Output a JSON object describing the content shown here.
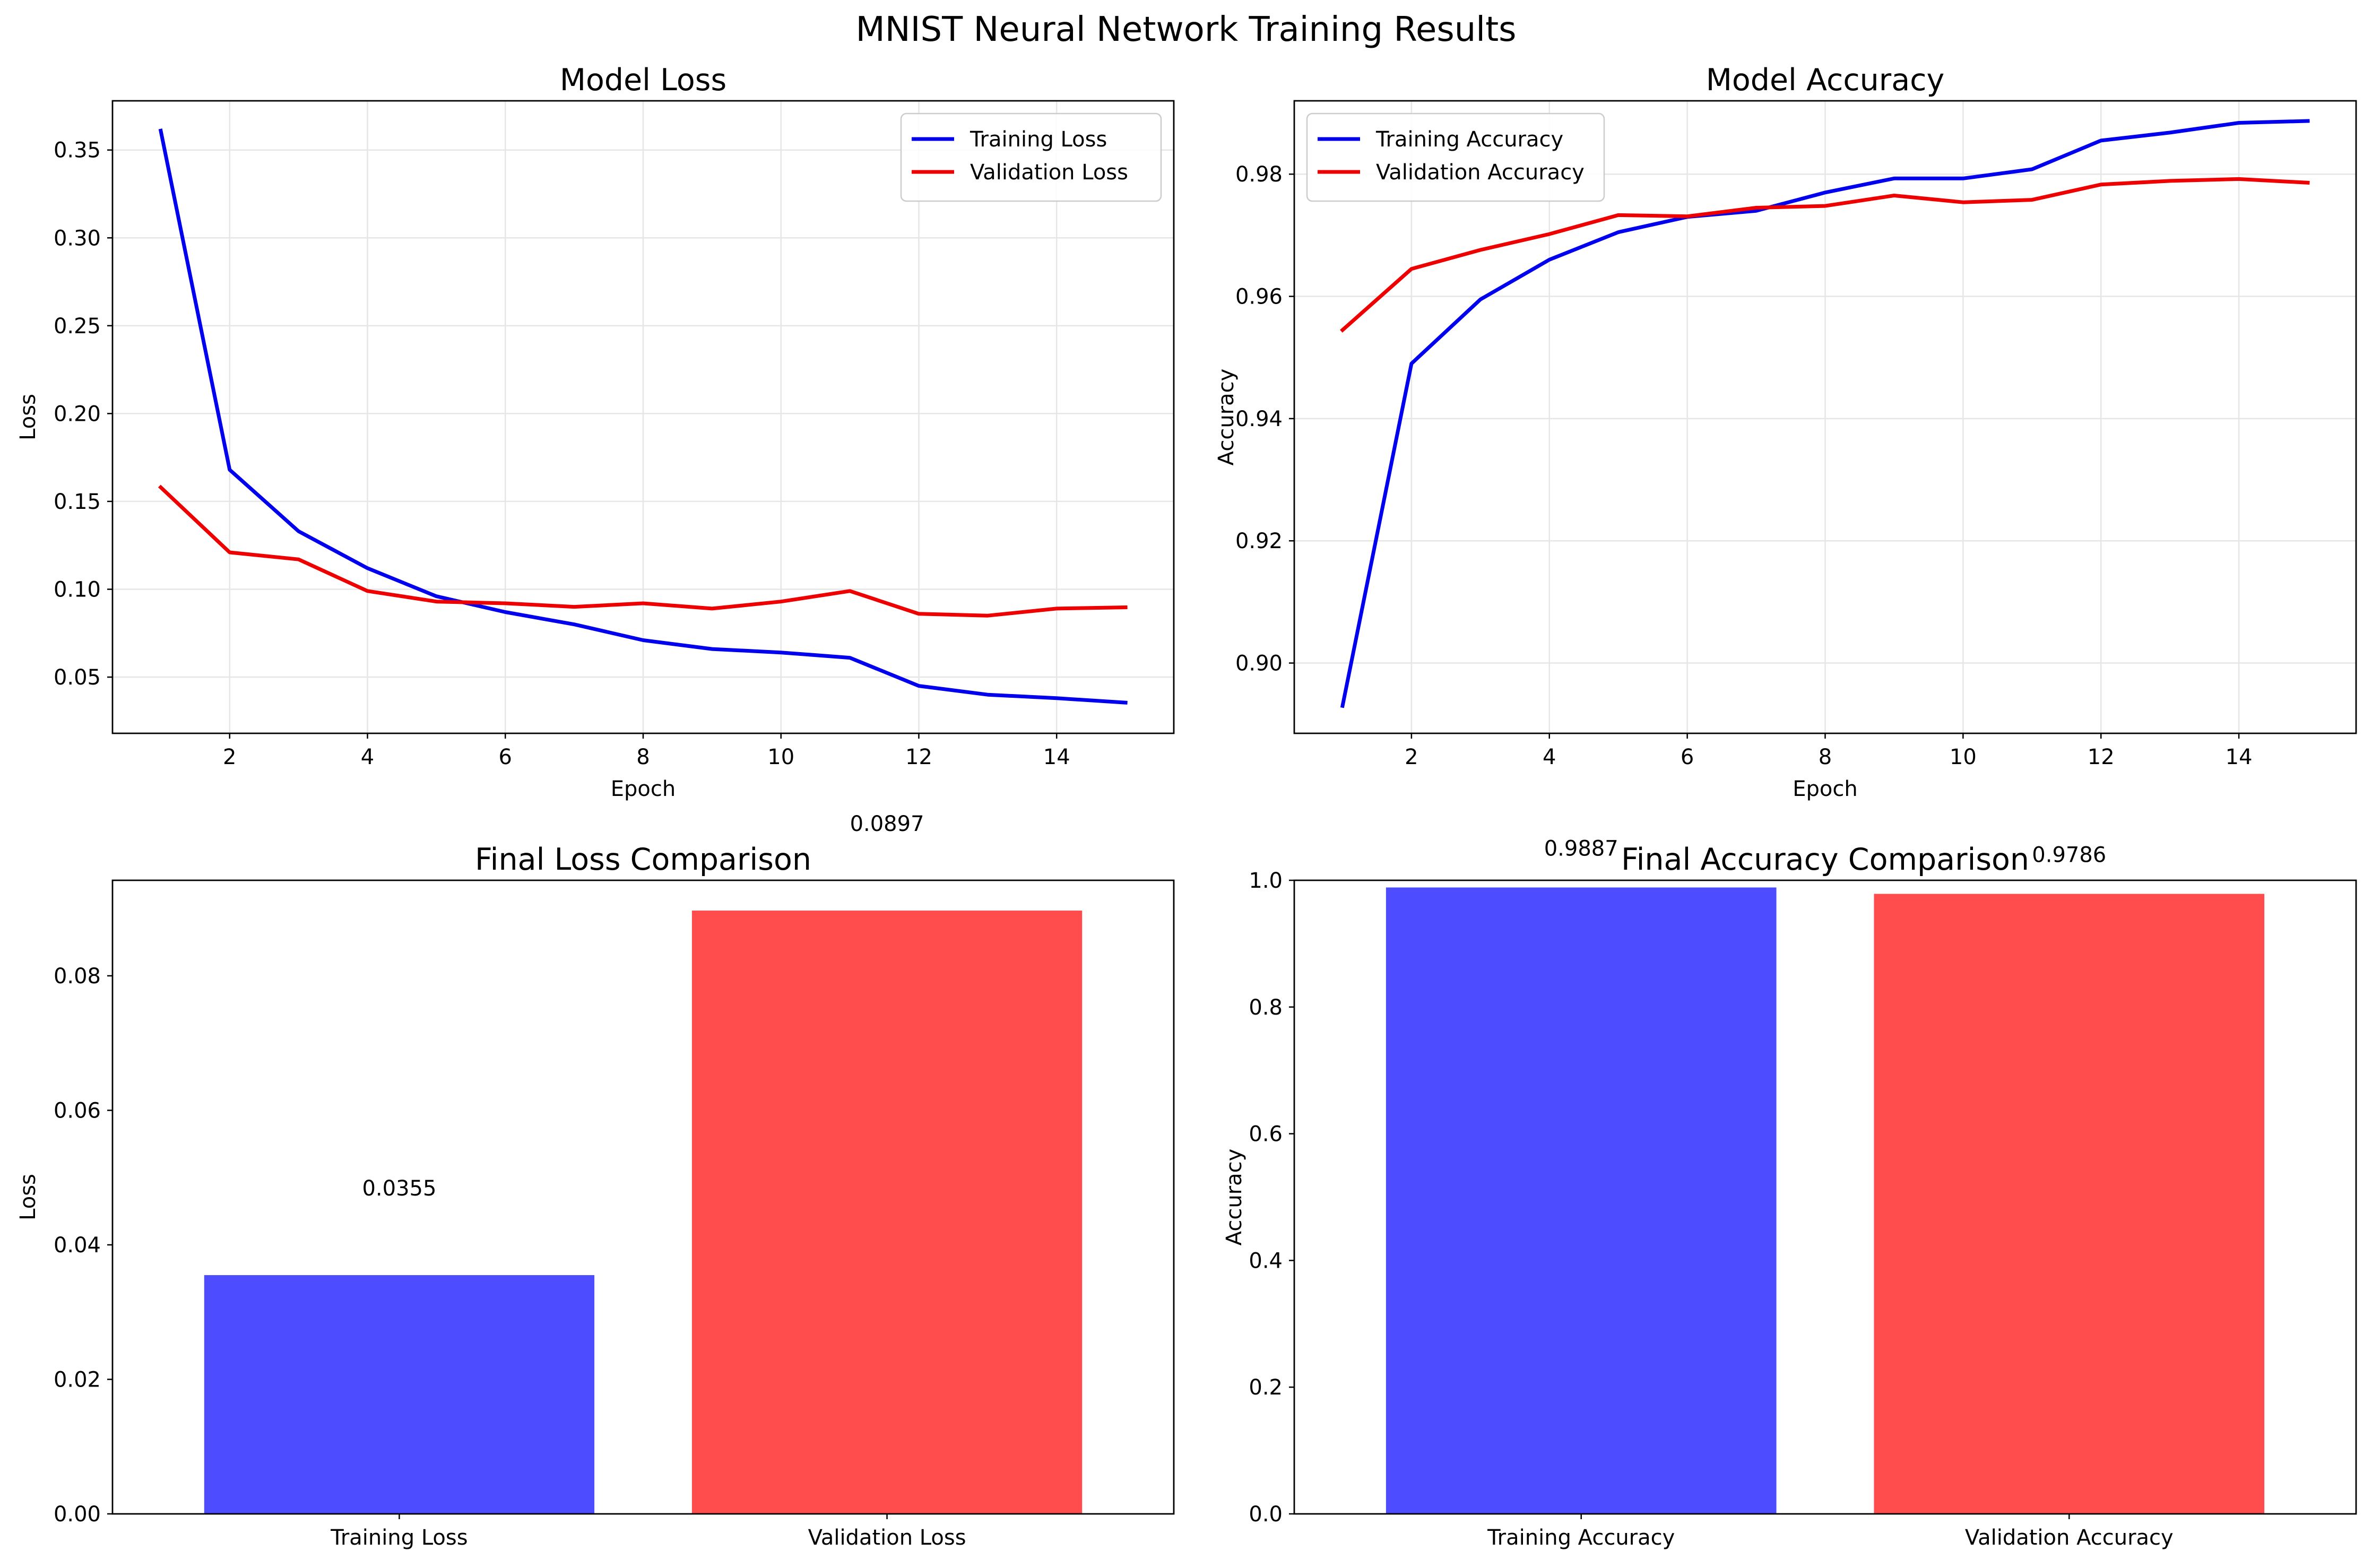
{
  "figure": {
    "title": "MNIST Neural Network Training Results"
  },
  "colors": {
    "training_line": "#0000ee",
    "validation_line": "#ee0000",
    "training_bar": "#4d4dff",
    "validation_bar": "#ff4d4d",
    "grid": "#e6e6e6"
  },
  "chart_data": [
    {
      "id": "loss",
      "type": "line",
      "title": "Model Loss",
      "xlabel": "Epoch",
      "ylabel": "Loss",
      "x": [
        1,
        2,
        3,
        4,
        5,
        6,
        7,
        8,
        9,
        10,
        11,
        12,
        13,
        14,
        15
      ],
      "xlim": [
        0.3,
        15.7
      ],
      "ylim": [
        0.018,
        0.378
      ],
      "xticks": [
        2,
        4,
        6,
        8,
        10,
        12,
        14
      ],
      "yticks": [
        0.05,
        0.1,
        0.15,
        0.2,
        0.25,
        0.3,
        0.35
      ],
      "ytick_labels": [
        "0.05",
        "0.10",
        "0.15",
        "0.20",
        "0.25",
        "0.30",
        "0.35"
      ],
      "grid": true,
      "legend_position": "top-right",
      "series": [
        {
          "name": "Training Loss",
          "color": "training_line",
          "values": [
            0.361,
            0.168,
            0.133,
            0.112,
            0.096,
            0.087,
            0.08,
            0.071,
            0.066,
            0.064,
            0.061,
            0.045,
            0.04,
            0.038,
            0.0355
          ]
        },
        {
          "name": "Validation Loss",
          "color": "validation_line",
          "values": [
            0.158,
            0.121,
            0.117,
            0.099,
            0.093,
            0.092,
            0.09,
            0.092,
            0.089,
            0.093,
            0.099,
            0.086,
            0.085,
            0.089,
            0.0897
          ]
        }
      ]
    },
    {
      "id": "accuracy",
      "type": "line",
      "title": "Model Accuracy",
      "xlabel": "Epoch",
      "ylabel": "Accuracy",
      "x": [
        1,
        2,
        3,
        4,
        5,
        6,
        7,
        8,
        9,
        10,
        11,
        12,
        13,
        14,
        15
      ],
      "xlim": [
        0.3,
        15.7
      ],
      "ylim": [
        0.8885,
        0.992
      ],
      "xticks": [
        2,
        4,
        6,
        8,
        10,
        12,
        14
      ],
      "yticks": [
        0.9,
        0.92,
        0.94,
        0.96,
        0.98
      ],
      "ytick_labels": [
        "0.90",
        "0.92",
        "0.94",
        "0.96",
        "0.98"
      ],
      "grid": true,
      "legend_position": "top-left",
      "series": [
        {
          "name": "Training Accuracy",
          "color": "training_line",
          "values": [
            0.893,
            0.949,
            0.9595,
            0.966,
            0.9705,
            0.973,
            0.974,
            0.977,
            0.9793,
            0.9793,
            0.9808,
            0.9855,
            0.9868,
            0.9884,
            0.9887
          ]
        },
        {
          "name": "Validation Accuracy",
          "color": "validation_line",
          "values": [
            0.9545,
            0.9645,
            0.9676,
            0.9702,
            0.9733,
            0.9731,
            0.9745,
            0.9748,
            0.9765,
            0.9754,
            0.9758,
            0.9783,
            0.9789,
            0.9792,
            0.9786
          ]
        }
      ]
    },
    {
      "id": "final_loss",
      "type": "bar",
      "title": "Final Loss Comparison",
      "xlabel": "",
      "ylabel": "Loss",
      "categories": [
        "Training Loss",
        "Validation Loss"
      ],
      "values": [
        0.0355,
        0.0897
      ],
      "value_labels": [
        "0.0355",
        "0.0897"
      ],
      "bar_colors": [
        "training_bar",
        "validation_bar"
      ],
      "ylim": [
        0,
        0.0942
      ],
      "yticks": [
        0,
        0.02,
        0.04,
        0.06,
        0.08
      ],
      "ytick_labels": [
        "0.00",
        "0.02",
        "0.04",
        "0.06",
        "0.08"
      ],
      "grid": false
    },
    {
      "id": "final_accuracy",
      "type": "bar",
      "title": "Final Accuracy Comparison",
      "xlabel": "",
      "ylabel": "Accuracy",
      "categories": [
        "Training Accuracy",
        "Validation Accuracy"
      ],
      "values": [
        0.9887,
        0.9786
      ],
      "value_labels": [
        "0.9887",
        "0.9786"
      ],
      "bar_colors": [
        "training_bar",
        "validation_bar"
      ],
      "ylim": [
        0,
        1.0
      ],
      "yticks": [
        0,
        0.2,
        0.4,
        0.6,
        0.8,
        1.0
      ],
      "ytick_labels": [
        "0.0",
        "0.2",
        "0.4",
        "0.6",
        "0.8",
        "1.0"
      ],
      "grid": false
    }
  ]
}
